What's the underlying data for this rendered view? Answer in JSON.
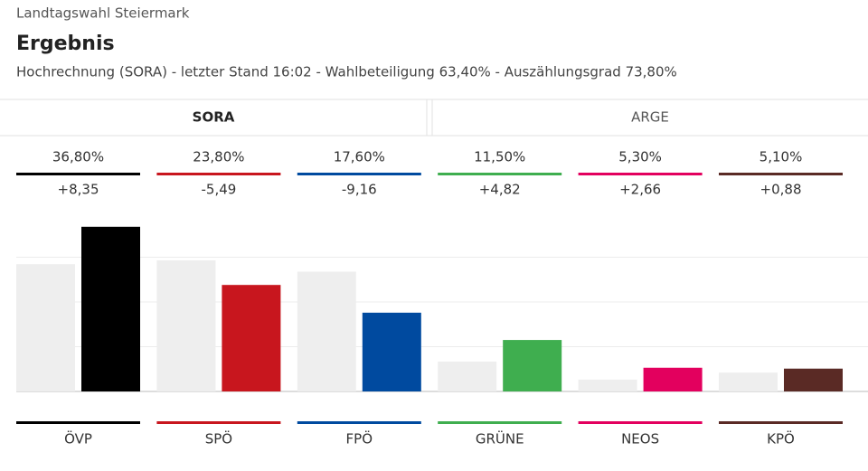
{
  "header": {
    "kicker": "Landtagswahl Steiermark",
    "title": "Ergebnis",
    "subtitle": "Hochrechnung (SORA) - letzter Stand 16:02 - Wahlbeteiligung 63,40% - Auszählungsgrad 73,80%"
  },
  "tabs": [
    {
      "label": "SORA",
      "active": true
    },
    {
      "label": "ARGE",
      "active": false
    }
  ],
  "chart_data": {
    "type": "bar",
    "categories": [
      "ÖVP",
      "SPÖ",
      "FPÖ",
      "GRÜNE",
      "NEOS",
      "KPÖ"
    ],
    "values": [
      36.8,
      23.8,
      17.6,
      11.5,
      5.3,
      5.1
    ],
    "value_labels": [
      "36,80%",
      "23,80%",
      "17,60%",
      "11,50%",
      "5,30%",
      "5,10%"
    ],
    "changes": [
      8.35,
      -5.49,
      -9.16,
      4.82,
      2.66,
      0.88
    ],
    "change_labels": [
      "+8,35",
      "-5,49",
      "-9,16",
      "+4,82",
      "+2,66",
      "+0,88"
    ],
    "previous_values": [
      28.45,
      29.29,
      26.76,
      6.68,
      2.64,
      4.22
    ],
    "previous_color": "#eeeeee",
    "colors": [
      "#000000",
      "#c8161e",
      "#004a9f",
      "#3fae4f",
      "#e3005e",
      "#5a2a25"
    ],
    "ylim": [
      0,
      40
    ],
    "yticks": [
      0,
      10,
      20,
      30
    ],
    "grid": true
  }
}
